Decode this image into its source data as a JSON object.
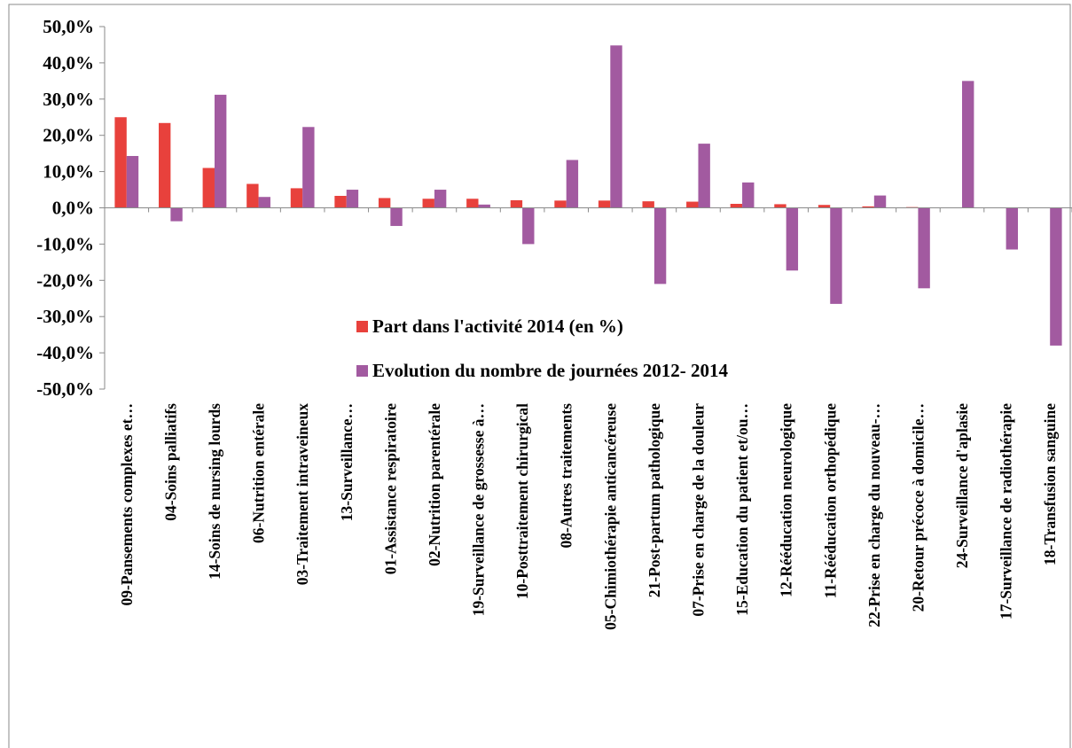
{
  "chart_data": {
    "type": "bar",
    "categories": [
      "09-Pansements complexes et…",
      "04-Soins palliatifs",
      "14-Soins de nursing lourds",
      "06-Nutrition entérale",
      "03-Traitement intraveineux",
      "13-Surveillance…",
      "01-Assistance respiratoire",
      "02-Nutrition parentérale",
      "19-Surveillance de grossesse à…",
      "10-Posttraitement chirurgical",
      "08-Autres traitements",
      "05-Chimiothérapie anticancéreuse",
      "21-Post-partum pathologique",
      "07-Prise en charge de la douleur",
      "15-Education du patient et/ou…",
      "12-Rééducation neurologique",
      "11-Rééducation orthopédique",
      "22-Prise en charge du nouveau-…",
      "20-Retour précoce à domicile…",
      "24-Surveillance d'aplasie",
      "17-Surveillance de radiothérapie",
      "18-Transfusion sanguine"
    ],
    "series": [
      {
        "name": "Part dans l'activité 2014 (en %)",
        "color": "#e8413c",
        "values": [
          25.0,
          23.4,
          11.0,
          6.6,
          5.4,
          3.3,
          2.7,
          2.5,
          2.5,
          2.1,
          2.0,
          2.0,
          1.8,
          1.7,
          1.1,
          1.0,
          0.8,
          0.4,
          0.2,
          0.0,
          0.0,
          0.0
        ]
      },
      {
        "name": "Evolution du nombre de journées 2012- 2014",
        "color": "#a25aa0",
        "values": [
          14.3,
          -3.7,
          31.2,
          3.0,
          22.3,
          5.0,
          -5.0,
          5.0,
          0.9,
          -10.0,
          13.2,
          44.8,
          -21.0,
          17.7,
          7.0,
          -17.3,
          -26.5,
          3.4,
          -22.2,
          35.0,
          -11.5,
          -38.0
        ]
      }
    ],
    "ylim": [
      -50,
      50
    ],
    "yticks": [
      {
        "value": 50,
        "label": "50,0%"
      },
      {
        "value": 40,
        "label": "40,0%"
      },
      {
        "value": 30,
        "label": "30,0%"
      },
      {
        "value": 20,
        "label": "20,0%"
      },
      {
        "value": 10,
        "label": "10,0%"
      },
      {
        "value": 0,
        "label": "0,0%"
      },
      {
        "value": -10,
        "label": "-10,0%"
      },
      {
        "value": -20,
        "label": "-20,0%"
      },
      {
        "value": -30,
        "label": "-30,0%"
      },
      {
        "value": -40,
        "label": "-40,0%"
      },
      {
        "value": -50,
        "label": "-50,0%"
      }
    ],
    "grid": false,
    "legend_position": "center-bottom-inside"
  }
}
